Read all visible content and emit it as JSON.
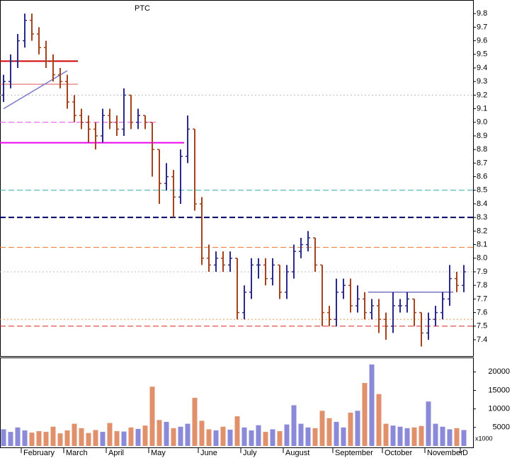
{
  "chart_data": {
    "type": "ohlc",
    "title": "PTC",
    "categories": [
      null,
      null,
      null,
      "February",
      null,
      null,
      null,
      null,
      null,
      "March",
      null,
      null,
      null,
      null,
      null,
      "April",
      null,
      null,
      null,
      null,
      null,
      "May",
      null,
      null,
      null,
      null,
      null,
      null,
      "June",
      null,
      null,
      null,
      null,
      null,
      "July",
      null,
      null,
      null,
      null,
      null,
      "August",
      null,
      null,
      null,
      null,
      null,
      null,
      "September",
      null,
      null,
      null,
      null,
      null,
      null,
      "October",
      null,
      null,
      null,
      null,
      null,
      "November",
      null,
      null,
      null,
      null,
      "D"
    ],
    "open": [
      9.2,
      9.3,
      9.45,
      9.6,
      9.75,
      9.65,
      9.55,
      9.45,
      9.35,
      9.3,
      9.15,
      9.05,
      9.0,
      8.95,
      8.9,
      9.05,
      9.0,
      8.95,
      9.2,
      9.0,
      9.05,
      9.0,
      8.8,
      8.55,
      8.6,
      8.45,
      8.75,
      8.95,
      8.4,
      8.0,
      7.95,
      8.0,
      7.95,
      8.0,
      7.6,
      7.75,
      7.95,
      7.95,
      7.85,
      7.95,
      7.75,
      7.9,
      8.05,
      8.1,
      8.15,
      7.95,
      7.6,
      7.55,
      7.75,
      7.8,
      7.65,
      7.7,
      7.6,
      7.65,
      7.55,
      7.5,
      7.65,
      7.65,
      7.7,
      7.6,
      7.45,
      7.55,
      7.6,
      7.7,
      7.85,
      7.8
    ],
    "high": [
      9.35,
      9.5,
      9.65,
      9.8,
      9.8,
      9.7,
      9.6,
      9.5,
      9.4,
      9.35,
      9.2,
      9.1,
      9.05,
      9.0,
      9.1,
      9.1,
      9.05,
      9.25,
      9.2,
      9.1,
      9.05,
      9.0,
      8.8,
      8.7,
      8.65,
      8.8,
      9.05,
      8.95,
      8.45,
      8.1,
      8.05,
      8.05,
      8.05,
      8.0,
      7.8,
      8.0,
      8.0,
      8.0,
      8.0,
      7.95,
      7.95,
      8.1,
      8.15,
      8.2,
      8.15,
      7.95,
      7.65,
      7.85,
      7.85,
      7.85,
      7.8,
      7.75,
      7.7,
      7.7,
      7.6,
      7.75,
      7.7,
      7.75,
      7.7,
      7.6,
      7.6,
      7.65,
      7.75,
      7.95,
      7.9,
      7.95
    ],
    "low": [
      9.15,
      9.25,
      9.4,
      9.55,
      9.6,
      9.5,
      9.4,
      9.3,
      9.25,
      9.1,
      9.0,
      8.95,
      8.85,
      8.8,
      8.85,
      8.95,
      8.9,
      8.9,
      8.95,
      8.95,
      8.95,
      8.6,
      8.4,
      8.5,
      8.3,
      8.4,
      8.7,
      8.35,
      7.95,
      7.9,
      7.9,
      7.9,
      7.9,
      7.55,
      7.55,
      7.7,
      7.85,
      7.8,
      7.8,
      7.7,
      7.7,
      7.85,
      8.0,
      8.05,
      7.9,
      7.5,
      7.5,
      7.5,
      7.7,
      7.6,
      7.6,
      7.55,
      7.55,
      7.45,
      7.4,
      7.45,
      7.6,
      7.6,
      7.5,
      7.35,
      7.4,
      7.5,
      7.55,
      7.65,
      7.75,
      7.75
    ],
    "close": [
      9.3,
      9.45,
      9.6,
      9.75,
      9.65,
      9.55,
      9.45,
      9.35,
      9.3,
      9.15,
      9.05,
      9.0,
      8.95,
      8.9,
      9.05,
      9.0,
      8.95,
      9.2,
      9.0,
      9.05,
      9.0,
      8.8,
      8.55,
      8.6,
      8.45,
      8.75,
      8.95,
      8.4,
      8.0,
      7.95,
      8.0,
      7.95,
      8.0,
      7.6,
      7.75,
      7.95,
      7.95,
      7.85,
      7.95,
      7.75,
      7.9,
      8.05,
      8.1,
      8.15,
      7.95,
      7.6,
      7.55,
      7.75,
      7.8,
      7.65,
      7.7,
      7.6,
      7.65,
      7.55,
      7.5,
      7.65,
      7.65,
      7.7,
      7.6,
      7.45,
      7.55,
      7.6,
      7.7,
      7.85,
      7.8,
      7.9
    ],
    "volume": [
      4500,
      3800,
      5000,
      4200,
      3600,
      4000,
      3800,
      5200,
      3400,
      4200,
      6000,
      4800,
      3500,
      4300,
      3800,
      6200,
      4000,
      3900,
      5000,
      4600,
      5500,
      16000,
      7000,
      6500,
      4800,
      5200,
      6000,
      13000,
      6800,
      4500,
      4200,
      5200,
      4400,
      8000,
      5000,
      4200,
      5600,
      3800,
      4500,
      4000,
      5800,
      11000,
      6000,
      5000,
      4800,
      9500,
      7500,
      6500,
      5000,
      9000,
      9500,
      17000,
      22000,
      14000,
      6000,
      5500,
      5200,
      4800,
      5000,
      5400,
      12000,
      6000,
      5200,
      4500,
      4800,
      4300
    ],
    "up_color": "#2b2b8c",
    "down_color": "#a3421c",
    "vol_up_color": "#8a8ad8",
    "vol_down_color": "#e0916c",
    "ylim": [
      7.28,
      9.9
    ],
    "yticks": [
      7.4,
      7.5,
      7.6,
      7.7,
      7.8,
      7.9,
      {
        "value": 8,
        "label": "8.0"
      },
      8.1,
      8.2,
      8.3,
      8.4,
      8.5,
      8.6,
      8.7,
      8.8,
      8.9,
      {
        "value": 9,
        "label": "9.0"
      },
      9.1,
      9.2,
      9.3,
      9.4,
      9.5,
      9.6,
      9.7,
      9.8
    ],
    "vlim": [
      0,
      23500
    ],
    "vticks": [
      5000,
      10000,
      15000,
      20000
    ],
    "vunit": "x1000",
    "levels": [
      {
        "value": 9.45,
        "color": "#cc0000",
        "style": "solid",
        "width": 2,
        "start": 0,
        "end": 11
      },
      {
        "value": 9.28,
        "color": "#dd5555",
        "style": "solid",
        "width": 1,
        "start": 0,
        "end": 11
      },
      {
        "value": 9.2,
        "color": "#bbbbbb",
        "style": "dotted",
        "width": 1,
        "start": 0,
        "end": 66
      },
      {
        "value": 9.0,
        "color": "#ee44ee",
        "style": "dashed",
        "width": 1,
        "start": 0,
        "end": 22
      },
      {
        "value": 8.85,
        "color": "#ee00ee",
        "style": "solid",
        "width": 2,
        "start": 0,
        "end": 26
      },
      {
        "value": 8.5,
        "color": "#33aaaa",
        "style": "dashed",
        "width": 1,
        "start": 0,
        "end": 66
      },
      {
        "value": 8.3,
        "color": "#000066",
        "style": "dashed",
        "width": 2,
        "start": 0,
        "end": 66
      },
      {
        "value": 8.08,
        "color": "#ee7733",
        "style": "dashed",
        "width": 1,
        "start": 0,
        "end": 66
      },
      {
        "value": 7.9,
        "color": "#bbbbbb",
        "style": "dotted",
        "width": 1,
        "start": 0,
        "end": 66
      },
      {
        "value": 7.55,
        "color": "#ee9955",
        "style": "dotted",
        "width": 1,
        "start": 0,
        "end": 66
      },
      {
        "value": 7.5,
        "color": "#dd2222",
        "style": "dashed",
        "width": 1,
        "start": 0,
        "end": 66
      },
      {
        "value": 7.75,
        "color": "#3333aa",
        "style": "solid",
        "width": 1,
        "start": 52,
        "end": 64
      }
    ],
    "trendline": {
      "x": [
        0,
        9
      ],
      "y": [
        9.1,
        9.38
      ],
      "color": "#7777cc"
    }
  }
}
